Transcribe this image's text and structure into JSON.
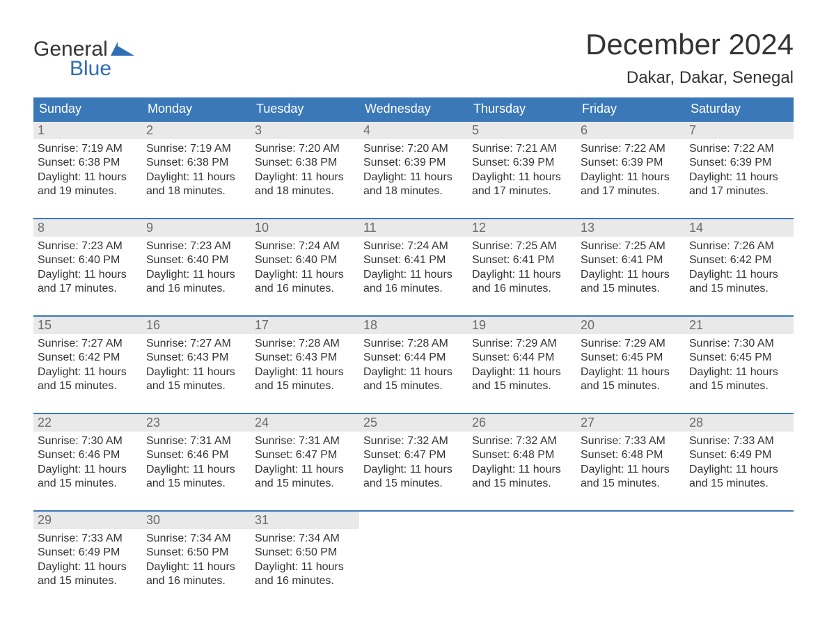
{
  "logo": {
    "top": "General",
    "bottom": "Blue",
    "icon_color": "#2f6eb5"
  },
  "title": "December 2024",
  "location": "Dakar, Dakar, Senegal",
  "colors": {
    "header_bg": "#3b78b8",
    "header_text": "#ffffff",
    "daynum_bg": "#e9e9e9",
    "daynum_text": "#6b6b6b",
    "body_text": "#343434",
    "week_border": "#3b78b8",
    "page_bg": "#ffffff"
  },
  "weekdays": [
    "Sunday",
    "Monday",
    "Tuesday",
    "Wednesday",
    "Thursday",
    "Friday",
    "Saturday"
  ],
  "labels": {
    "sunrise": "Sunrise",
    "sunset": "Sunset",
    "daylight": "Daylight"
  },
  "weeks": [
    [
      {
        "n": "1",
        "sunrise": "7:19 AM",
        "sunset": "6:38 PM",
        "daylight": "11 hours and 19 minutes."
      },
      {
        "n": "2",
        "sunrise": "7:19 AM",
        "sunset": "6:38 PM",
        "daylight": "11 hours and 18 minutes."
      },
      {
        "n": "3",
        "sunrise": "7:20 AM",
        "sunset": "6:38 PM",
        "daylight": "11 hours and 18 minutes."
      },
      {
        "n": "4",
        "sunrise": "7:20 AM",
        "sunset": "6:39 PM",
        "daylight": "11 hours and 18 minutes."
      },
      {
        "n": "5",
        "sunrise": "7:21 AM",
        "sunset": "6:39 PM",
        "daylight": "11 hours and 17 minutes."
      },
      {
        "n": "6",
        "sunrise": "7:22 AM",
        "sunset": "6:39 PM",
        "daylight": "11 hours and 17 minutes."
      },
      {
        "n": "7",
        "sunrise": "7:22 AM",
        "sunset": "6:39 PM",
        "daylight": "11 hours and 17 minutes."
      }
    ],
    [
      {
        "n": "8",
        "sunrise": "7:23 AM",
        "sunset": "6:40 PM",
        "daylight": "11 hours and 17 minutes."
      },
      {
        "n": "9",
        "sunrise": "7:23 AM",
        "sunset": "6:40 PM",
        "daylight": "11 hours and 16 minutes."
      },
      {
        "n": "10",
        "sunrise": "7:24 AM",
        "sunset": "6:40 PM",
        "daylight": "11 hours and 16 minutes."
      },
      {
        "n": "11",
        "sunrise": "7:24 AM",
        "sunset": "6:41 PM",
        "daylight": "11 hours and 16 minutes."
      },
      {
        "n": "12",
        "sunrise": "7:25 AM",
        "sunset": "6:41 PM",
        "daylight": "11 hours and 16 minutes."
      },
      {
        "n": "13",
        "sunrise": "7:25 AM",
        "sunset": "6:41 PM",
        "daylight": "11 hours and 15 minutes."
      },
      {
        "n": "14",
        "sunrise": "7:26 AM",
        "sunset": "6:42 PM",
        "daylight": "11 hours and 15 minutes."
      }
    ],
    [
      {
        "n": "15",
        "sunrise": "7:27 AM",
        "sunset": "6:42 PM",
        "daylight": "11 hours and 15 minutes."
      },
      {
        "n": "16",
        "sunrise": "7:27 AM",
        "sunset": "6:43 PM",
        "daylight": "11 hours and 15 minutes."
      },
      {
        "n": "17",
        "sunrise": "7:28 AM",
        "sunset": "6:43 PM",
        "daylight": "11 hours and 15 minutes."
      },
      {
        "n": "18",
        "sunrise": "7:28 AM",
        "sunset": "6:44 PM",
        "daylight": "11 hours and 15 minutes."
      },
      {
        "n": "19",
        "sunrise": "7:29 AM",
        "sunset": "6:44 PM",
        "daylight": "11 hours and 15 minutes."
      },
      {
        "n": "20",
        "sunrise": "7:29 AM",
        "sunset": "6:45 PM",
        "daylight": "11 hours and 15 minutes."
      },
      {
        "n": "21",
        "sunrise": "7:30 AM",
        "sunset": "6:45 PM",
        "daylight": "11 hours and 15 minutes."
      }
    ],
    [
      {
        "n": "22",
        "sunrise": "7:30 AM",
        "sunset": "6:46 PM",
        "daylight": "11 hours and 15 minutes."
      },
      {
        "n": "23",
        "sunrise": "7:31 AM",
        "sunset": "6:46 PM",
        "daylight": "11 hours and 15 minutes."
      },
      {
        "n": "24",
        "sunrise": "7:31 AM",
        "sunset": "6:47 PM",
        "daylight": "11 hours and 15 minutes."
      },
      {
        "n": "25",
        "sunrise": "7:32 AM",
        "sunset": "6:47 PM",
        "daylight": "11 hours and 15 minutes."
      },
      {
        "n": "26",
        "sunrise": "7:32 AM",
        "sunset": "6:48 PM",
        "daylight": "11 hours and 15 minutes."
      },
      {
        "n": "27",
        "sunrise": "7:33 AM",
        "sunset": "6:48 PM",
        "daylight": "11 hours and 15 minutes."
      },
      {
        "n": "28",
        "sunrise": "7:33 AM",
        "sunset": "6:49 PM",
        "daylight": "11 hours and 15 minutes."
      }
    ],
    [
      {
        "n": "29",
        "sunrise": "7:33 AM",
        "sunset": "6:49 PM",
        "daylight": "11 hours and 15 minutes."
      },
      {
        "n": "30",
        "sunrise": "7:34 AM",
        "sunset": "6:50 PM",
        "daylight": "11 hours and 16 minutes."
      },
      {
        "n": "31",
        "sunrise": "7:34 AM",
        "sunset": "6:50 PM",
        "daylight": "11 hours and 16 minutes."
      },
      null,
      null,
      null,
      null
    ]
  ]
}
